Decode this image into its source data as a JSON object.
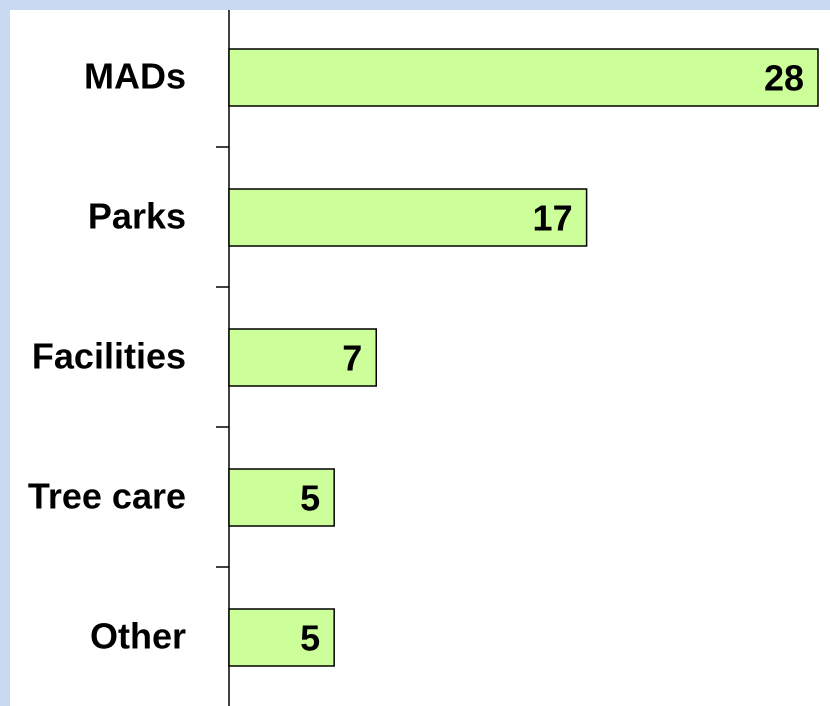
{
  "chart_data": {
    "type": "bar",
    "orientation": "horizontal",
    "categories": [
      "MADs",
      "Parks",
      "Facilities",
      "Tree care",
      "Other"
    ],
    "values": [
      28,
      17,
      7,
      5,
      5
    ],
    "color": "#ccff99"
  }
}
